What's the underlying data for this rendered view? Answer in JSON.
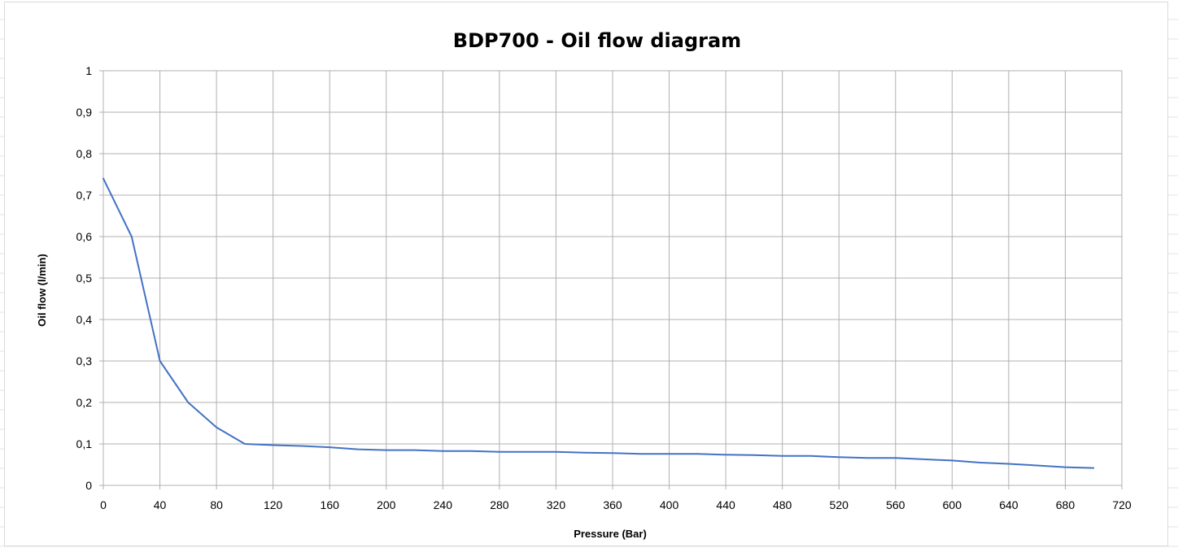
{
  "chart_data": {
    "type": "line",
    "title": "BDP700 - Oil flow diagram",
    "xlabel": "Pressure (Bar)",
    "ylabel": "Oil flow (l/min)",
    "xlim": [
      0,
      720
    ],
    "ylim": [
      0,
      1
    ],
    "x_ticks": [
      "0",
      "40",
      "80",
      "120",
      "160",
      "200",
      "240",
      "280",
      "320",
      "360",
      "400",
      "440",
      "480",
      "520",
      "560",
      "600",
      "640",
      "680",
      "720"
    ],
    "y_ticks": [
      "0",
      "0,1",
      "0,2",
      "0,3",
      "0,4",
      "0,5",
      "0,6",
      "0,7",
      "0,8",
      "0,9",
      "1"
    ],
    "grid": true,
    "legend": "none",
    "series": [
      {
        "color": "#4472c4",
        "x": [
          0,
          20,
          40,
          60,
          80,
          100,
          120,
          140,
          160,
          180,
          200,
          220,
          240,
          260,
          280,
          300,
          320,
          340,
          360,
          380,
          400,
          420,
          440,
          460,
          480,
          500,
          520,
          540,
          560,
          580,
          600,
          620,
          640,
          660,
          680,
          700
        ],
        "y": [
          0.74,
          0.6,
          0.3,
          0.2,
          0.14,
          0.1,
          0.097,
          0.095,
          0.092,
          0.087,
          0.085,
          0.085,
          0.083,
          0.083,
          0.081,
          0.081,
          0.081,
          0.079,
          0.078,
          0.076,
          0.076,
          0.076,
          0.074,
          0.073,
          0.071,
          0.071,
          0.068,
          0.066,
          0.066,
          0.063,
          0.06,
          0.055,
          0.052,
          0.048,
          0.044,
          0.042
        ]
      }
    ]
  }
}
